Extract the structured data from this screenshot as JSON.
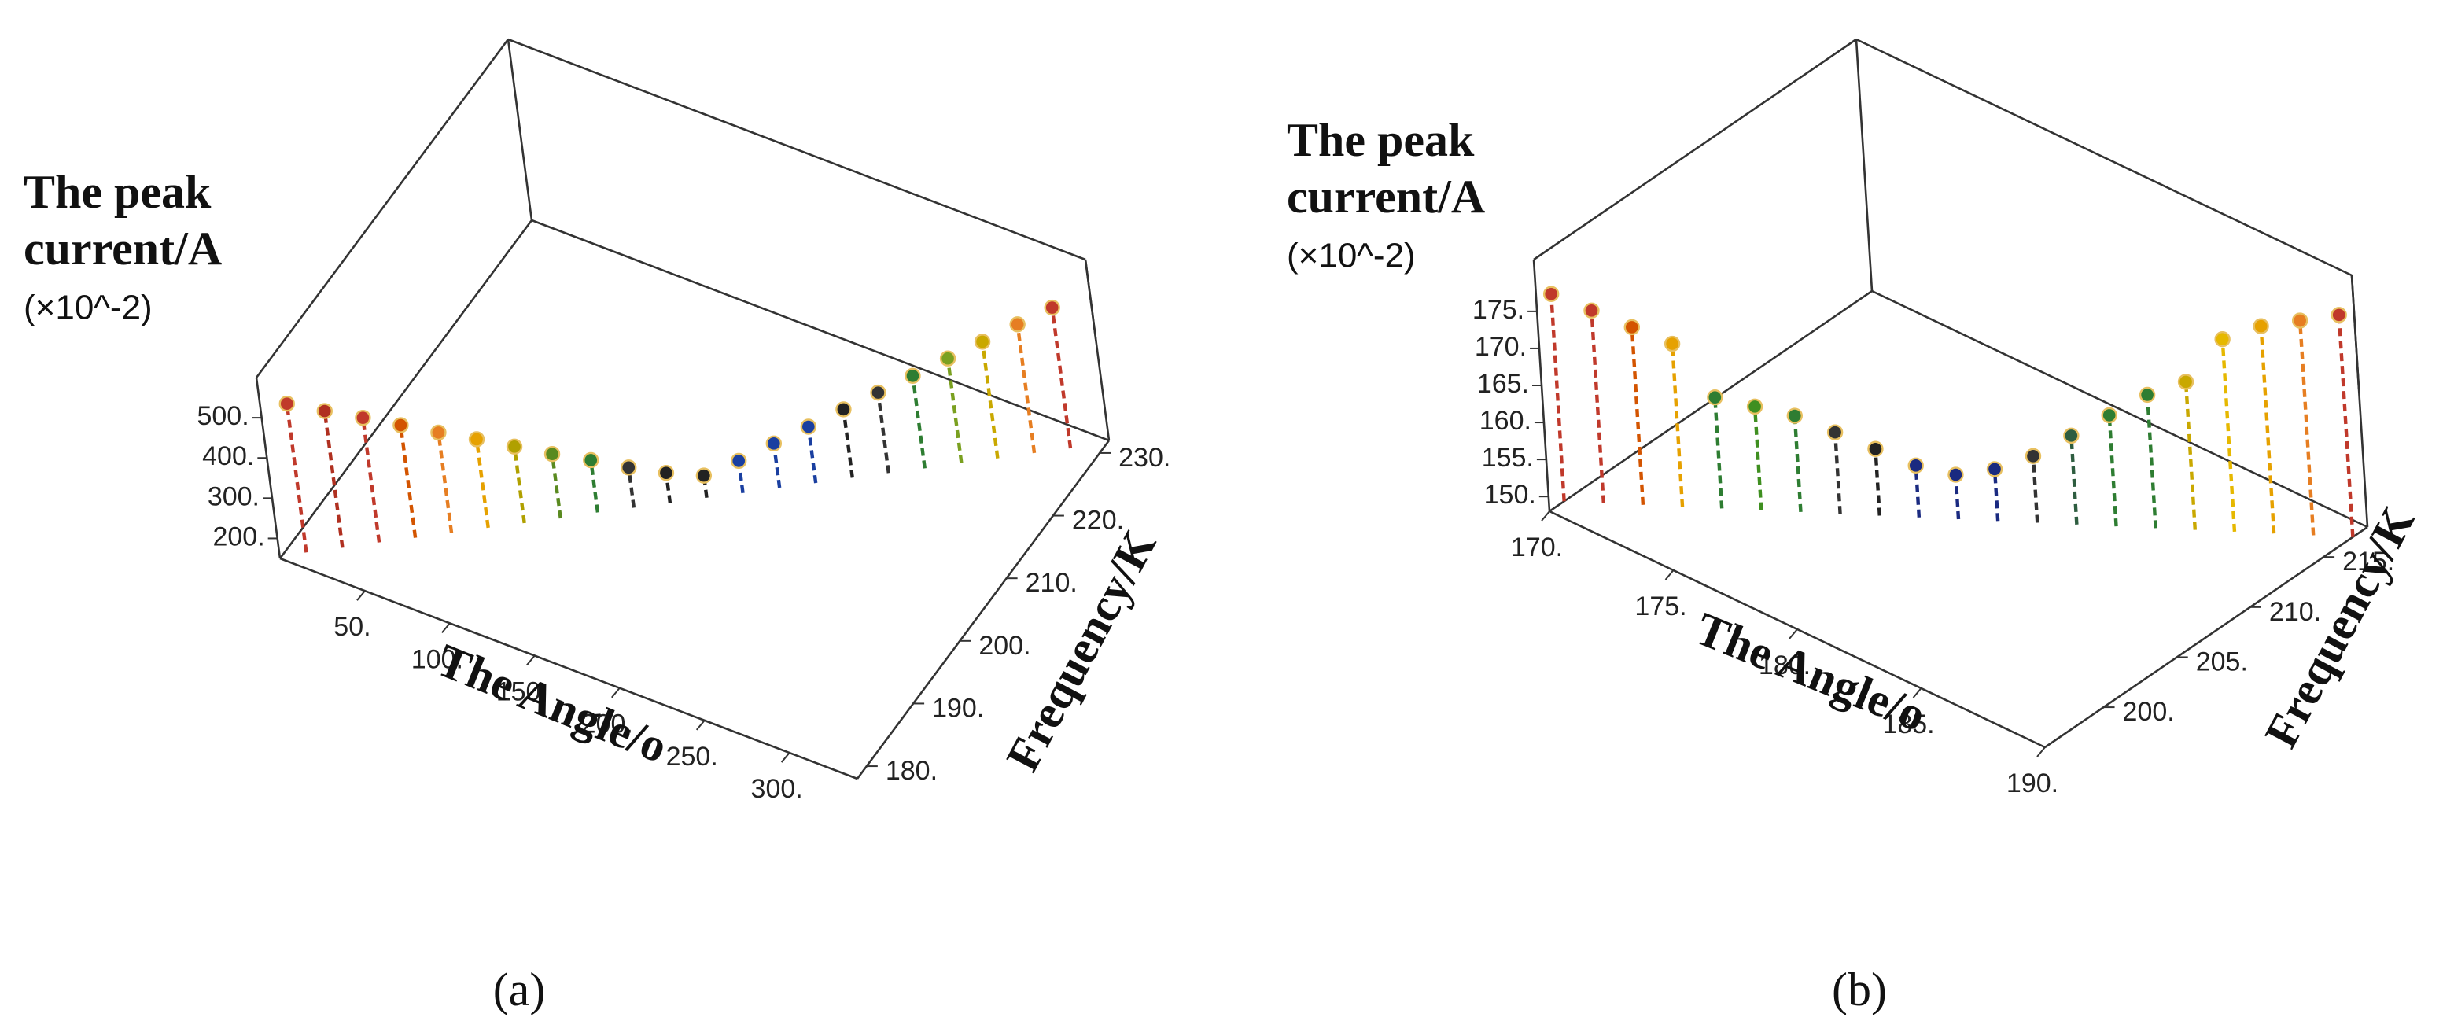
{
  "chart_data": [
    {
      "type": "scatter3d",
      "caption": "(a)",
      "zlabel": [
        "The peak",
        "current/A",
        "(×10^-2)"
      ],
      "xlabel": "The Angle/o",
      "ylabel": "Frequency/K",
      "x": [
        10,
        25,
        40,
        55,
        70,
        85,
        100,
        115,
        130,
        145,
        160,
        175,
        190,
        205,
        220,
        235,
        250,
        265,
        280,
        295,
        310,
        325
      ],
      "y": [
        180,
        182.3,
        184.7,
        187,
        189.3,
        191.7,
        194,
        196.3,
        198.8,
        201.1,
        203.4,
        205.8,
        208.1,
        210.5,
        212.8,
        215.2,
        217.5,
        219.8,
        222.2,
        224.5,
        226.9,
        229.2
      ],
      "z": [
        520,
        490,
        460,
        430,
        400,
        370,
        340,
        310,
        280,
        250,
        225,
        205,
        230,
        260,
        290,
        320,
        350,
        380,
        410,
        440,
        470,
        500
      ],
      "colors": [
        "#c0392b",
        "#b03020",
        "#c0392b",
        "#d35400",
        "#e67e22",
        "#e6a100",
        "#b0a000",
        "#5a8a20",
        "#2e7d32",
        "#333",
        "#222",
        "#222",
        "#1a3fa0",
        "#1a3fa0",
        "#1a3fa0",
        "#222",
        "#333",
        "#2e7d32",
        "#7aa020",
        "#c9a800",
        "#e67e22",
        "#c0392b"
      ],
      "xlim": [
        0,
        340
      ],
      "ylim": [
        178,
        232
      ],
      "zlim": [
        150,
        600
      ],
      "xticks": [
        {
          "value": 50,
          "label": "50."
        },
        {
          "value": 100,
          "label": "100."
        },
        {
          "value": 150,
          "label": "150."
        },
        {
          "value": 200,
          "label": "200."
        },
        {
          "value": 250,
          "label": "250."
        },
        {
          "value": 300,
          "label": "300."
        }
      ],
      "yticks": [
        {
          "value": 180,
          "label": "180."
        },
        {
          "value": 190,
          "label": "190."
        },
        {
          "value": 200,
          "label": "200."
        },
        {
          "value": 210,
          "label": "210."
        },
        {
          "value": 220,
          "label": "220."
        },
        {
          "value": 230,
          "label": "230."
        }
      ],
      "zticks": [
        {
          "value": 200,
          "label": "200."
        },
        {
          "value": 300,
          "label": "300."
        },
        {
          "value": 400,
          "label": "400."
        },
        {
          "value": 500,
          "label": "500."
        }
      ]
    },
    {
      "type": "scatter3d",
      "caption": "(b)",
      "zlabel": [
        "The peak",
        "current/A",
        "(×10^-2)"
      ],
      "xlabel": "The Angle/o",
      "ylabel": "Frequency/K",
      "x": [
        170,
        171,
        172,
        173,
        174,
        175,
        176,
        177,
        178,
        179,
        180,
        181,
        182,
        183,
        184,
        185,
        186,
        187,
        188,
        189,
        190
      ],
      "y": [
        197,
        198,
        199,
        200,
        201,
        202,
        203,
        204,
        205,
        206,
        207,
        208,
        209,
        210,
        211,
        212,
        213,
        214,
        215,
        216,
        217
      ],
      "z": [
        176,
        174,
        172,
        170,
        163,
        162,
        161,
        159,
        157,
        155,
        154,
        155,
        157,
        160,
        163,
        166,
        168,
        174,
        176,
        177,
        178
      ],
      "colors": [
        "#c0392b",
        "#c0392b",
        "#d35400",
        "#e6a100",
        "#2e7d32",
        "#3f8f20",
        "#2e7d32",
        "#333",
        "#222",
        "#1a2a80",
        "#1a2a80",
        "#1a2a80",
        "#333",
        "#2e5d40",
        "#2e7d32",
        "#2e7d32",
        "#c9a800",
        "#e6b800",
        "#e6a100",
        "#e67e22",
        "#c0392b"
      ],
      "xlim": [
        170,
        190
      ],
      "ylim": [
        196,
        218
      ],
      "zlim": [
        148,
        182
      ],
      "xticks": [
        {
          "value": 170,
          "label": "170."
        },
        {
          "value": 175,
          "label": "175."
        },
        {
          "value": 180,
          "label": "180."
        },
        {
          "value": 185,
          "label": "185."
        },
        {
          "value": 190,
          "label": "190."
        }
      ],
      "yticks": [
        {
          "value": 200,
          "label": "200."
        },
        {
          "value": 205,
          "label": "205."
        },
        {
          "value": 210,
          "label": "210."
        },
        {
          "value": 215,
          "label": "215."
        }
      ],
      "zticks": [
        {
          "value": 150,
          "label": "150."
        },
        {
          "value": 155,
          "label": "155."
        },
        {
          "value": 160,
          "label": "160."
        },
        {
          "value": 165,
          "label": "165."
        },
        {
          "value": 170,
          "label": "170."
        },
        {
          "value": 175,
          "label": "175."
        }
      ]
    }
  ]
}
